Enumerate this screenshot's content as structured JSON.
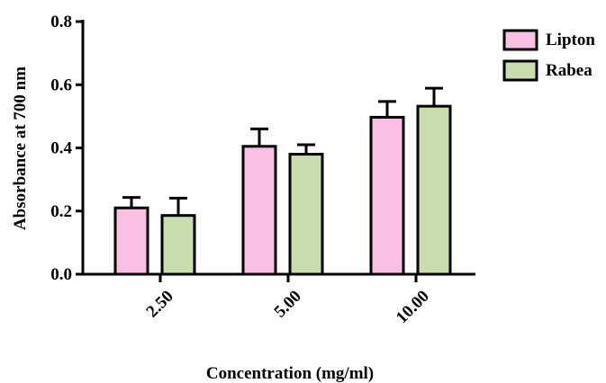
{
  "chart_data": {
    "type": "bar",
    "xlabel": "Concentration (mg/ml)",
    "ylabel": "Absorbance at 700 nm",
    "categories": [
      "2.50",
      "5.00",
      "10.00"
    ],
    "ylim": [
      0,
      0.8
    ],
    "yticks": [
      "0.0",
      "0.2",
      "0.4",
      "0.6",
      "0.8"
    ],
    "legend_position": "top-right",
    "grid": false,
    "series": [
      {
        "name": "Lipton",
        "color": "#f9c0e4",
        "values": [
          0.21,
          0.405,
          0.497
        ],
        "errors": [
          0.033,
          0.055,
          0.05
        ]
      },
      {
        "name": "Rabea",
        "color": "#c8dcae",
        "values": [
          0.186,
          0.38,
          0.532
        ],
        "errors": [
          0.055,
          0.03,
          0.057
        ]
      }
    ]
  }
}
